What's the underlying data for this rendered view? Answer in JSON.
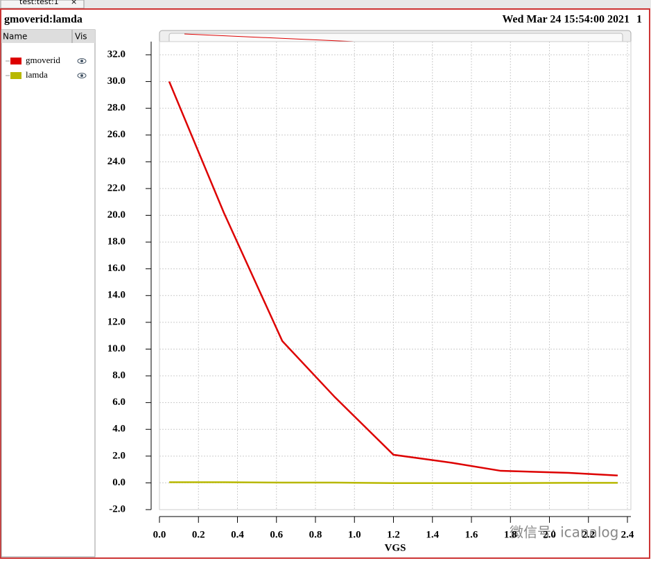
{
  "tab": {
    "label": "test:test:1",
    "close": "×"
  },
  "window": {
    "title": "gmoverid:lamda",
    "timestamp": "Wed Mar 24 15:54:00 2021",
    "page": "1"
  },
  "panel": {
    "headers": [
      "Name",
      "Vis"
    ]
  },
  "watermark": "微信号: icanalog",
  "chart_data": {
    "type": "line",
    "x_label": "VGS",
    "x": [
      0.05,
      0.33,
      0.63,
      0.9,
      1.2,
      1.5,
      1.75,
      2.1,
      2.35
    ],
    "series": [
      {
        "name": "gmoverid",
        "color": "#dd0000",
        "values": [
          30.0,
          20.2,
          10.6,
          6.4,
          2.1,
          1.5,
          0.9,
          0.75,
          0.55
        ]
      },
      {
        "name": "lamda",
        "color": "#b8b800",
        "values": [
          0.05,
          0.05,
          0.02,
          0.02,
          -0.02,
          -0.02,
          -0.02,
          0.0,
          0.0
        ]
      }
    ],
    "xlim": [
      0,
      2.4
    ],
    "ylim": [
      -2,
      33
    ],
    "xticks": [
      {
        "value": 0,
        "label": "0.0"
      },
      0.2,
      0.4,
      0.6,
      0.8,
      {
        "value": 1,
        "label": "1.0"
      },
      1.2,
      1.4,
      1.6,
      1.8,
      {
        "value": 2,
        "label": "2.0"
      },
      2.2,
      2.4
    ],
    "yticks": [
      {
        "value": -2,
        "label": "-2.0"
      },
      {
        "value": 0,
        "label": "0.0"
      },
      {
        "value": 2,
        "label": "2.0"
      },
      {
        "value": 4,
        "label": "4.0"
      },
      {
        "value": 6,
        "label": "6.0"
      },
      {
        "value": 8,
        "label": "8.0"
      },
      {
        "value": 10,
        "label": "10.0"
      },
      {
        "value": 12,
        "label": "12.0"
      },
      {
        "value": 14,
        "label": "14.0"
      },
      {
        "value": 16,
        "label": "16.0"
      },
      {
        "value": 18,
        "label": "18.0"
      },
      {
        "value": 20,
        "label": "20.0"
      },
      {
        "value": 22,
        "label": "22.0"
      },
      {
        "value": 24,
        "label": "24.0"
      },
      {
        "value": 26,
        "label": "26.0"
      },
      {
        "value": 28,
        "label": "28.0"
      },
      {
        "value": 30,
        "label": "30.0"
      },
      {
        "value": 32,
        "label": "32.0"
      }
    ],
    "grid": true
  }
}
